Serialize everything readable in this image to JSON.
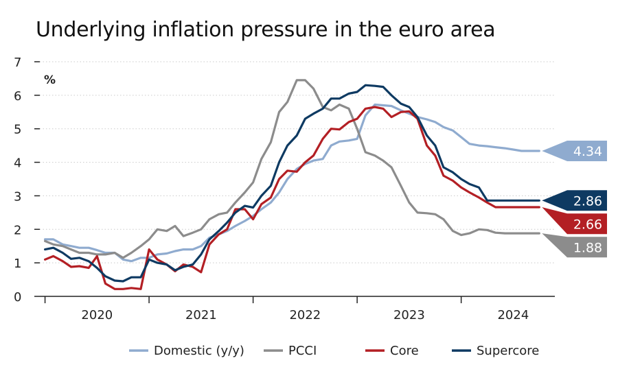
{
  "chart_data": {
    "type": "line",
    "title": "Underlying inflation pressure in the euro area",
    "ylabel": "%",
    "xlabel": "",
    "ylim": [
      0,
      7
    ],
    "yticks": [
      "0",
      "1",
      "2",
      "3",
      "4",
      "5",
      "6",
      "7"
    ],
    "xlim": [
      2019.45,
      2024.4
    ],
    "year_labels": [
      "2020",
      "2021",
      "2022",
      "2023",
      "2024"
    ],
    "year_label_positions": [
      2020.0,
      2021.0,
      2022.0,
      2023.0,
      2024.0
    ],
    "year_separators": [
      2019.5,
      2020.5,
      2021.5,
      2022.5,
      2023.5
    ],
    "grid": true,
    "legend_position": "bottom",
    "series": [
      {
        "name": "Domestic (y/y)",
        "color": "#8fabcf",
        "end_label": "4.34",
        "x": [
          2019.5,
          2019.58,
          2019.67,
          2019.75,
          2019.83,
          2019.92,
          2020.0,
          2020.08,
          2020.17,
          2020.25,
          2020.33,
          2020.42,
          2020.5,
          2020.58,
          2020.67,
          2020.75,
          2020.83,
          2020.92,
          2021.0,
          2021.08,
          2021.17,
          2021.25,
          2021.33,
          2021.42,
          2021.5,
          2021.58,
          2021.67,
          2021.75,
          2021.83,
          2021.92,
          2022.0,
          2022.08,
          2022.17,
          2022.25,
          2022.33,
          2022.42,
          2022.5,
          2022.58,
          2022.67,
          2022.75,
          2022.83,
          2022.92,
          2023.0,
          2023.08,
          2023.17,
          2023.25,
          2023.33,
          2023.42,
          2023.5,
          2023.58,
          2023.67,
          2023.75,
          2023.83,
          2023.92,
          2024.0,
          2024.08,
          2024.17,
          2024.25
        ],
        "y": [
          1.7,
          1.7,
          1.55,
          1.5,
          1.45,
          1.45,
          1.38,
          1.3,
          1.3,
          1.1,
          1.05,
          1.15,
          1.15,
          1.25,
          1.28,
          1.35,
          1.4,
          1.4,
          1.5,
          1.75,
          1.85,
          1.95,
          2.1,
          2.25,
          2.4,
          2.6,
          2.8,
          3.1,
          3.5,
          3.8,
          3.95,
          4.05,
          4.1,
          4.5,
          4.62,
          4.65,
          4.7,
          5.4,
          5.72,
          5.7,
          5.68,
          5.55,
          5.45,
          5.35,
          5.28,
          5.2,
          5.05,
          4.95,
          4.75,
          4.55,
          4.5,
          4.48,
          4.45,
          4.42,
          4.38,
          4.34,
          4.34,
          4.34
        ]
      },
      {
        "name": "PCCI",
        "color": "#8c8c8c",
        "end_label": "1.88",
        "x": [
          2019.5,
          2019.58,
          2019.67,
          2019.75,
          2019.83,
          2019.92,
          2020.0,
          2020.08,
          2020.17,
          2020.25,
          2020.33,
          2020.42,
          2020.5,
          2020.58,
          2020.67,
          2020.75,
          2020.83,
          2020.92,
          2021.0,
          2021.08,
          2021.17,
          2021.25,
          2021.33,
          2021.42,
          2021.5,
          2021.58,
          2021.67,
          2021.75,
          2021.83,
          2021.92,
          2022.0,
          2022.08,
          2022.17,
          2022.25,
          2022.33,
          2022.42,
          2022.5,
          2022.58,
          2022.67,
          2022.75,
          2022.83,
          2022.92,
          2023.0,
          2023.08,
          2023.17,
          2023.25,
          2023.33,
          2023.42,
          2023.5,
          2023.58,
          2023.67,
          2023.75,
          2023.83,
          2023.92,
          2024.0,
          2024.08,
          2024.17,
          2024.25
        ],
        "y": [
          1.65,
          1.55,
          1.5,
          1.4,
          1.3,
          1.3,
          1.25,
          1.25,
          1.3,
          1.15,
          1.3,
          1.5,
          1.7,
          2.0,
          1.95,
          2.1,
          1.8,
          1.9,
          2.0,
          2.3,
          2.45,
          2.5,
          2.8,
          3.1,
          3.4,
          4.1,
          4.6,
          5.5,
          5.8,
          6.45,
          6.45,
          6.2,
          5.65,
          5.55,
          5.72,
          5.6,
          5.0,
          4.3,
          4.2,
          4.05,
          3.85,
          3.3,
          2.8,
          2.5,
          2.48,
          2.45,
          2.3,
          1.95,
          1.83,
          1.88,
          2.0,
          1.98,
          1.9,
          1.88,
          1.88,
          1.88,
          1.88,
          1.88
        ]
      },
      {
        "name": "Core",
        "color": "#b31f24",
        "end_label": "2.66",
        "x": [
          2019.5,
          2019.58,
          2019.67,
          2019.75,
          2019.83,
          2019.92,
          2020.0,
          2020.08,
          2020.17,
          2020.25,
          2020.33,
          2020.42,
          2020.5,
          2020.58,
          2020.67,
          2020.75,
          2020.83,
          2020.92,
          2021.0,
          2021.08,
          2021.17,
          2021.25,
          2021.33,
          2021.42,
          2021.5,
          2021.58,
          2021.67,
          2021.75,
          2021.83,
          2021.92,
          2022.0,
          2022.08,
          2022.17,
          2022.25,
          2022.33,
          2022.42,
          2022.5,
          2022.58,
          2022.67,
          2022.75,
          2022.83,
          2022.92,
          2023.0,
          2023.08,
          2023.17,
          2023.25,
          2023.33,
          2023.42,
          2023.5,
          2023.58,
          2023.67,
          2023.75,
          2023.83,
          2023.92,
          2024.0,
          2024.08,
          2024.17,
          2024.25
        ],
        "y": [
          1.1,
          1.2,
          1.05,
          0.88,
          0.9,
          0.85,
          1.2,
          0.38,
          0.22,
          0.22,
          0.25,
          0.22,
          1.4,
          1.1,
          0.95,
          0.75,
          0.95,
          0.88,
          0.72,
          1.55,
          1.85,
          2.0,
          2.6,
          2.6,
          2.3,
          2.75,
          2.95,
          3.5,
          3.75,
          3.72,
          4.0,
          4.2,
          4.7,
          5.0,
          4.98,
          5.2,
          5.3,
          5.6,
          5.65,
          5.6,
          5.35,
          5.5,
          5.52,
          5.3,
          4.5,
          4.2,
          3.6,
          3.45,
          3.25,
          3.1,
          2.95,
          2.8,
          2.66,
          2.66,
          2.66,
          2.66,
          2.66,
          2.66
        ]
      },
      {
        "name": "Supercore",
        "color": "#0e3a62",
        "end_label": "2.86",
        "x": [
          2019.5,
          2019.58,
          2019.67,
          2019.75,
          2019.83,
          2019.92,
          2020.0,
          2020.08,
          2020.17,
          2020.25,
          2020.33,
          2020.42,
          2020.5,
          2020.58,
          2020.67,
          2020.75,
          2020.83,
          2020.92,
          2021.0,
          2021.08,
          2021.17,
          2021.25,
          2021.33,
          2021.42,
          2021.5,
          2021.58,
          2021.67,
          2021.75,
          2021.83,
          2021.92,
          2022.0,
          2022.08,
          2022.17,
          2022.25,
          2022.33,
          2022.42,
          2022.5,
          2022.58,
          2022.67,
          2022.75,
          2022.83,
          2022.92,
          2023.0,
          2023.08,
          2023.17,
          2023.25,
          2023.33,
          2023.42,
          2023.5,
          2023.58,
          2023.67,
          2023.75,
          2023.83,
          2023.92,
          2024.0,
          2024.08,
          2024.17,
          2024.25
        ],
        "y": [
          1.4,
          1.45,
          1.3,
          1.12,
          1.15,
          1.05,
          0.85,
          0.6,
          0.47,
          0.45,
          0.57,
          0.57,
          1.1,
          1.0,
          0.95,
          0.78,
          0.88,
          0.95,
          1.25,
          1.7,
          1.95,
          2.2,
          2.5,
          2.7,
          2.65,
          3.0,
          3.3,
          4.0,
          4.5,
          4.8,
          5.3,
          5.45,
          5.6,
          5.9,
          5.9,
          6.05,
          6.1,
          6.3,
          6.28,
          6.25,
          6.0,
          5.75,
          5.65,
          5.35,
          4.8,
          4.5,
          3.85,
          3.7,
          3.5,
          3.35,
          3.25,
          2.86,
          2.86,
          2.86,
          2.86,
          2.86,
          2.86,
          2.86
        ]
      }
    ]
  }
}
